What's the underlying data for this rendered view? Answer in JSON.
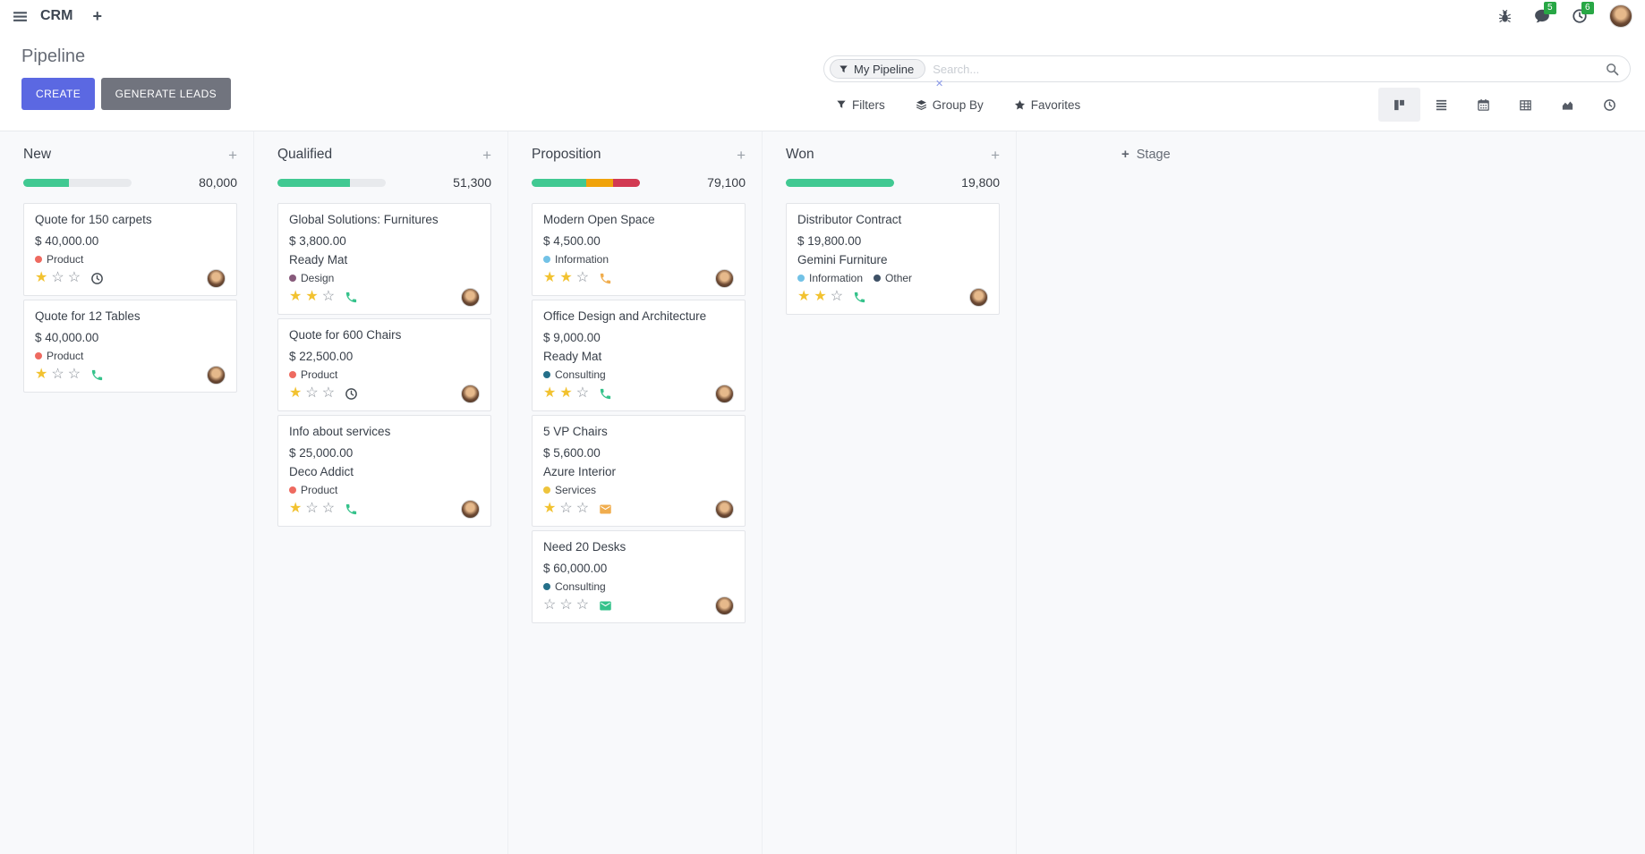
{
  "navbar": {
    "app": "CRM",
    "badges": {
      "messages": "5",
      "activities": "6"
    }
  },
  "control_panel": {
    "title": "Pipeline",
    "create_label": "CREATE",
    "generate_label": "GENERATE LEADS",
    "search": {
      "facet_label": "My Pipeline",
      "remove_glyph": "✕",
      "placeholder": "Search..."
    },
    "filters_label": "Filters",
    "group_by_label": "Group By",
    "favorites_label": "Favorites"
  },
  "stage": {
    "add_label": "Stage"
  },
  "tag_colors": {
    "Product": "#ee6a60",
    "Design": "#875a7b",
    "Information": "#72c2e6",
    "Consulting": "#25708a",
    "Services": "#eec43c",
    "Other": "#3e5166"
  },
  "activity_colors": {
    "none": "#495057",
    "green": "#35c28b",
    "orange": "#f0ad4e"
  },
  "board": {
    "columns": [
      {
        "name": "New",
        "total": "80,000",
        "progress": [
          {
            "color": "#41c992",
            "pct": 42
          }
        ],
        "cards": [
          {
            "title": "Quote for 150 carpets",
            "amount": "$ 40,000.00",
            "tags": [
              "Product"
            ],
            "rating": 1,
            "activity": {
              "icon": "clock",
              "state": "none"
            }
          },
          {
            "title": "Quote for 12 Tables",
            "amount": "$ 40,000.00",
            "tags": [
              "Product"
            ],
            "rating": 1,
            "activity": {
              "icon": "phone",
              "state": "green"
            }
          }
        ]
      },
      {
        "name": "Qualified",
        "total": "51,300",
        "progress": [
          {
            "color": "#41c992",
            "pct": 67
          }
        ],
        "cards": [
          {
            "title": "Global Solutions: Furnitures",
            "amount": "$ 3,800.00",
            "partner": "Ready Mat",
            "tags": [
              "Design"
            ],
            "rating": 2,
            "activity": {
              "icon": "phone",
              "state": "green"
            }
          },
          {
            "title": "Quote for 600 Chairs",
            "amount": "$ 22,500.00",
            "tags": [
              "Product"
            ],
            "rating": 1,
            "activity": {
              "icon": "clock",
              "state": "none"
            }
          },
          {
            "title": "Info about services",
            "amount": "$ 25,000.00",
            "partner": "Deco Addict",
            "tags": [
              "Product"
            ],
            "rating": 1,
            "activity": {
              "icon": "phone",
              "state": "green"
            }
          }
        ]
      },
      {
        "name": "Proposition",
        "total": "79,100",
        "progress": [
          {
            "color": "#41c992",
            "pct": 50
          },
          {
            "color": "#f0a30a",
            "pct": 25
          },
          {
            "color": "#d23a52",
            "pct": 25
          }
        ],
        "cards": [
          {
            "title": "Modern Open Space",
            "amount": "$ 4,500.00",
            "tags": [
              "Information"
            ],
            "rating": 2,
            "activity": {
              "icon": "phone",
              "state": "orange"
            }
          },
          {
            "title": "Office Design and Architecture",
            "amount": "$ 9,000.00",
            "partner": "Ready Mat",
            "tags": [
              "Consulting"
            ],
            "rating": 2,
            "activity": {
              "icon": "phone",
              "state": "green"
            }
          },
          {
            "title": "5 VP Chairs",
            "amount": "$ 5,600.00",
            "partner": "Azure Interior",
            "tags": [
              "Services"
            ],
            "rating": 1,
            "activity": {
              "icon": "envelope",
              "state": "orange"
            }
          },
          {
            "title": "Need 20 Desks",
            "amount": "$ 60,000.00",
            "tags": [
              "Consulting"
            ],
            "rating": 0,
            "activity": {
              "icon": "envelope",
              "state": "green"
            }
          }
        ]
      },
      {
        "name": "Won",
        "total": "19,800",
        "progress": [
          {
            "color": "#41c992",
            "pct": 100
          }
        ],
        "cards": [
          {
            "title": "Distributor Contract",
            "amount": "$ 19,800.00",
            "partner": "Gemini Furniture",
            "tags": [
              "Information",
              "Other"
            ],
            "rating": 2,
            "activity": {
              "icon": "phone",
              "state": "green"
            }
          }
        ]
      }
    ]
  }
}
